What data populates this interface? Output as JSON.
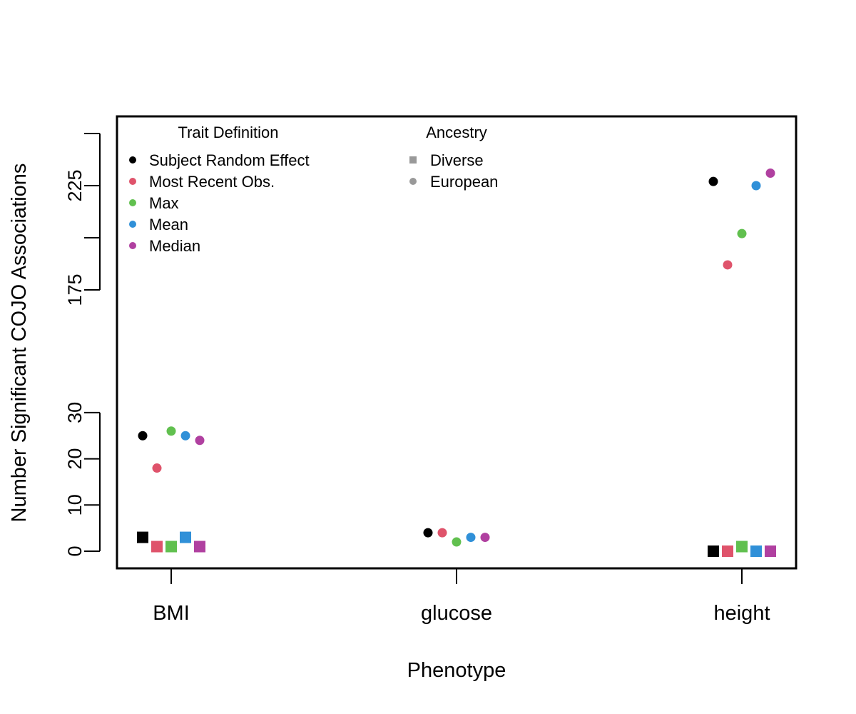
{
  "chart_data": {
    "type": "scatter",
    "title": "",
    "xlabel": "Phenotype",
    "ylabel": "Number Significant COJO Associations",
    "categories": [
      "BMI",
      "glucose",
      "height"
    ],
    "y_axis": {
      "broken": true,
      "lower_segment": {
        "range": [
          0,
          30
        ],
        "ticks": [
          0,
          10,
          20,
          30
        ],
        "labels": [
          "0",
          "10",
          "20",
          "30"
        ]
      },
      "upper_segment": {
        "range": [
          175,
          250
        ],
        "ticks": [
          175,
          200,
          225,
          250
        ],
        "labels": [
          "175",
          "",
          "225",
          ""
        ]
      }
    },
    "grid": false,
    "legends": [
      {
        "title": "Trait Definition",
        "placement": "top-left",
        "entries": [
          {
            "label": "Subject Random Effect",
            "color": "#000000"
          },
          {
            "label": "Most Recent Obs.",
            "color": "#DF536B"
          },
          {
            "label": "Max",
            "color": "#61C04F"
          },
          {
            "label": "Mean",
            "color": "#3090D8"
          },
          {
            "label": "Median",
            "color": "#B040A0"
          }
        ]
      },
      {
        "title": "Ancestry",
        "placement": "top-center",
        "entries": [
          {
            "label": "Diverse",
            "shape": "square",
            "color": "#999999"
          },
          {
            "label": "European",
            "shape": "circle",
            "color": "#999999"
          }
        ]
      }
    ],
    "series": [
      {
        "trait": "Subject Random Effect",
        "ancestry": "European",
        "values": [
          25,
          4,
          227
        ]
      },
      {
        "trait": "Most Recent Obs.",
        "ancestry": "European",
        "values": [
          18,
          4,
          187
        ]
      },
      {
        "trait": "Max",
        "ancestry": "European",
        "values": [
          26,
          2,
          202
        ]
      },
      {
        "trait": "Mean",
        "ancestry": "European",
        "values": [
          25,
          3,
          225
        ]
      },
      {
        "trait": "Median",
        "ancestry": "European",
        "values": [
          24,
          3,
          231
        ]
      },
      {
        "trait": "Subject Random Effect",
        "ancestry": "Diverse",
        "values": [
          3,
          null,
          0
        ]
      },
      {
        "trait": "Most Recent Obs.",
        "ancestry": "Diverse",
        "values": [
          1,
          null,
          0
        ]
      },
      {
        "trait": "Max",
        "ancestry": "Diverse",
        "values": [
          1,
          null,
          1
        ]
      },
      {
        "trait": "Mean",
        "ancestry": "Diverse",
        "values": [
          3,
          null,
          0
        ]
      },
      {
        "trait": "Median",
        "ancestry": "Diverse",
        "values": [
          1,
          null,
          0
        ]
      }
    ]
  }
}
